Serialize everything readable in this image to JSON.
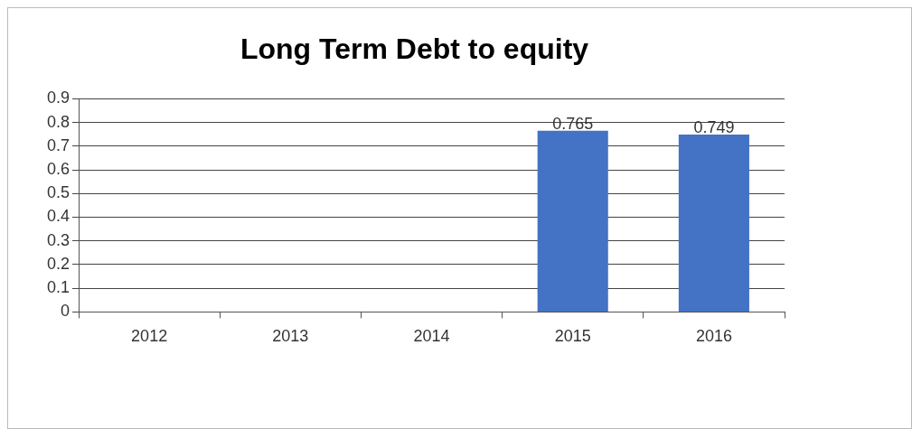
{
  "chart_data": {
    "type": "bar",
    "title": "Long Term Debt to equity",
    "categories": [
      "2012",
      "2013",
      "2014",
      "2015",
      "2016"
    ],
    "values": [
      null,
      null,
      null,
      0.765,
      0.749
    ],
    "color": "#4472c4",
    "ylim": [
      0,
      0.9
    ],
    "yticks": [
      0,
      0.1,
      0.2,
      0.3,
      0.4,
      0.5,
      0.6,
      0.7,
      0.8,
      0.9
    ],
    "grid": "y",
    "legend": false,
    "data_labels": true
  }
}
